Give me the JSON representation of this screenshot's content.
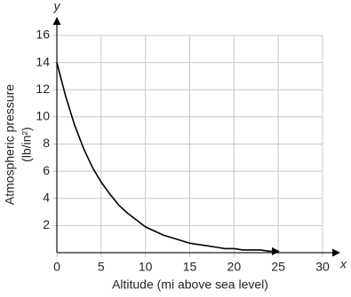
{
  "chart_data": {
    "type": "line",
    "xlabel": "Altitude (mi above sea level)",
    "ylabel": [
      "Atmospheric pressure",
      "(lb/in²)"
    ],
    "x_axis_name": "x",
    "y_axis_name": "y",
    "x": [
      0,
      1,
      2,
      3,
      4,
      5,
      6,
      7,
      8,
      9,
      10,
      11,
      12,
      13,
      14,
      15,
      16,
      17,
      18,
      19,
      20,
      21,
      22,
      23,
      24,
      25
    ],
    "series": [
      {
        "color": "#000000",
        "values": [
          14,
          11.5,
          9.4,
          7.7,
          6.3,
          5.2,
          4.3,
          3.5,
          2.9,
          2.4,
          1.9,
          1.6,
          1.3,
          1.1,
          0.9,
          0.7,
          0.6,
          0.5,
          0.4,
          0.3,
          0.3,
          0.2,
          0.2,
          0.2,
          0.1,
          0.1
        ]
      }
    ],
    "xlim": [
      0,
      30
    ],
    "ylim": [
      0,
      16
    ],
    "xticks": [
      0,
      5,
      10,
      15,
      20,
      25,
      30
    ],
    "yticks": [
      2,
      4,
      6,
      8,
      10,
      12,
      14,
      16
    ],
    "grid": true
  }
}
